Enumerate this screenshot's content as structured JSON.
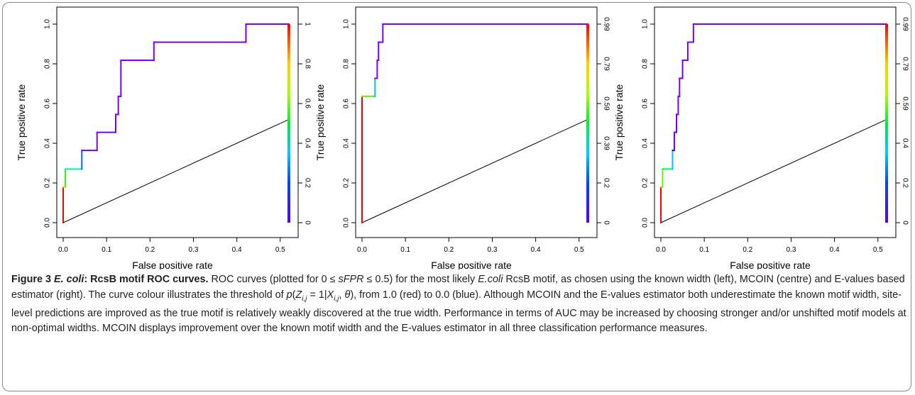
{
  "figure": {
    "label": "Figure 3",
    "title_italic": "E. coli",
    "title_rest": ": RcsB motif ROC curves.",
    "caption_segments": [
      {
        "t": "ROC curves (plotted for 0 ≤ ",
        "s": "n"
      },
      {
        "t": "sFPR",
        "s": "i"
      },
      {
        "t": " ≤ 0.5) for the most likely ",
        "s": "n"
      },
      {
        "t": "E.coli",
        "s": "i"
      },
      {
        "t": " RcsB motif, as chosen using the known width (left), MCOIN (centre) and E-values based estimator (right). The curve colour illustrates the threshold of ",
        "s": "n"
      },
      {
        "t": "p",
        "s": "i"
      },
      {
        "t": "(",
        "s": "n"
      },
      {
        "t": "Z",
        "s": "i"
      },
      {
        "t": "i,j",
        "s": "sub"
      },
      {
        "t": " = 1|",
        "s": "n"
      },
      {
        "t": "X",
        "s": "i"
      },
      {
        "t": "i,j",
        "s": "sub"
      },
      {
        "t": ", ",
        "s": "n"
      },
      {
        "t": "θ",
        "s": "i"
      },
      {
        "t": "), from 1.0 (red) to 0.0 (blue). Although MCOIN and the E-values estimator both underestimate the known motif width, site-level predictions are improved as the true motif is relatively weakly discovered at the true width. Performance in terms of AUC may be increased by choosing stronger and/or unshifted motif models at non-optimal widths. MCOIN displays improvement over the known motif width and the E-values estimator in all three classification performance measures.",
        "s": "n"
      }
    ]
  },
  "chart_data": [
    {
      "type": "line",
      "name": "left",
      "xlabel": "False positive rate",
      "ylabel": "True positive rate",
      "xlim": [
        0,
        0.52
      ],
      "ylim": [
        0,
        1
      ],
      "x_ticks": [
        "0.0",
        "0.1",
        "0.2",
        "0.3",
        "0.4",
        "0.5"
      ],
      "y_ticks": [
        "0.0",
        "0.2",
        "0.4",
        "0.6",
        "0.8",
        "1.0"
      ],
      "colorbar_ticks": [
        "0",
        "0.2",
        "0.4",
        "0.6",
        "0.8",
        "1"
      ],
      "colorbar_range": [
        0,
        1
      ],
      "roc": [
        [
          0,
          0
        ],
        [
          0,
          0.18
        ],
        [
          0.005,
          0.18
        ],
        [
          0.005,
          0.27
        ],
        [
          0.043,
          0.27
        ],
        [
          0.043,
          0.364
        ],
        [
          0.078,
          0.364
        ],
        [
          0.078,
          0.455
        ],
        [
          0.121,
          0.455
        ],
        [
          0.121,
          0.545
        ],
        [
          0.127,
          0.545
        ],
        [
          0.127,
          0.636
        ],
        [
          0.133,
          0.636
        ],
        [
          0.133,
          0.818
        ],
        [
          0.209,
          0.818
        ],
        [
          0.209,
          0.909
        ],
        [
          0.421,
          0.909
        ],
        [
          0.421,
          1.0
        ],
        [
          0.52,
          1.0
        ]
      ],
      "diagonal": [
        [
          0,
          0
        ],
        [
          0.52,
          0.52
        ]
      ]
    },
    {
      "type": "line",
      "name": "centre",
      "xlabel": "False positive rate",
      "ylabel": "True positive rate",
      "xlim": [
        0,
        0.52
      ],
      "ylim": [
        0,
        1
      ],
      "x_ticks": [
        "0.0",
        "0.1",
        "0.2",
        "0.3",
        "0.4",
        "0.5"
      ],
      "y_ticks": [
        "0.0",
        "0.2",
        "0.4",
        "0.6",
        "0.8",
        "1.0"
      ],
      "colorbar_ticks": [
        "0",
        "0.2",
        "0.39",
        "0.59",
        "0.79",
        "0.99"
      ],
      "colorbar_range": [
        0,
        0.99
      ],
      "roc": [
        [
          0,
          0
        ],
        [
          0,
          0.636
        ],
        [
          0.03,
          0.636
        ],
        [
          0.03,
          0.727
        ],
        [
          0.035,
          0.727
        ],
        [
          0.035,
          0.818
        ],
        [
          0.038,
          0.818
        ],
        [
          0.038,
          0.909
        ],
        [
          0.048,
          0.909
        ],
        [
          0.048,
          1.0
        ],
        [
          0.52,
          1.0
        ]
      ],
      "diagonal": [
        [
          0,
          0
        ],
        [
          0.52,
          0.52
        ]
      ]
    },
    {
      "type": "line",
      "name": "right",
      "xlabel": "False positive rate",
      "ylabel": "True positive rate",
      "xlim": [
        0,
        0.52
      ],
      "ylim": [
        0,
        1
      ],
      "x_ticks": [
        "0.0",
        "0.1",
        "0.2",
        "0.3",
        "0.4",
        "0.5"
      ],
      "y_ticks": [
        "0.0",
        "0.2",
        "0.4",
        "0.6",
        "0.8",
        "1.0"
      ],
      "colorbar_ticks": [
        "0",
        "0.2",
        "0.4",
        "0.59",
        "0.79",
        "0.99"
      ],
      "colorbar_range": [
        0,
        0.99
      ],
      "roc": [
        [
          0,
          0
        ],
        [
          0,
          0.18
        ],
        [
          0.004,
          0.18
        ],
        [
          0.004,
          0.27
        ],
        [
          0.027,
          0.27
        ],
        [
          0.027,
          0.364
        ],
        [
          0.031,
          0.364
        ],
        [
          0.031,
          0.455
        ],
        [
          0.036,
          0.455
        ],
        [
          0.036,
          0.545
        ],
        [
          0.04,
          0.545
        ],
        [
          0.04,
          0.636
        ],
        [
          0.043,
          0.636
        ],
        [
          0.043,
          0.727
        ],
        [
          0.05,
          0.727
        ],
        [
          0.05,
          0.818
        ],
        [
          0.062,
          0.818
        ],
        [
          0.062,
          0.909
        ],
        [
          0.075,
          0.909
        ],
        [
          0.075,
          1.0
        ],
        [
          0.52,
          1.0
        ]
      ],
      "diagonal": [
        [
          0,
          0
        ],
        [
          0.52,
          0.52
        ]
      ]
    }
  ]
}
